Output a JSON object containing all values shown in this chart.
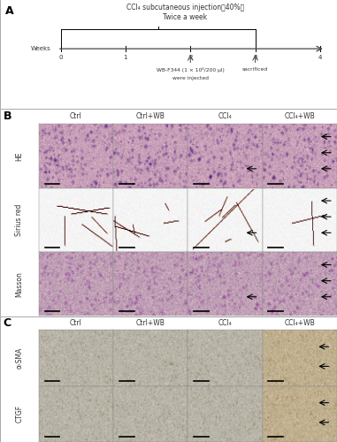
{
  "panel_A": {
    "title_line1": "CCl₄ subcutaneous injection（40%）",
    "title_line2": "Twice a week",
    "weeks_label": "Weeks",
    "tick_labels": [
      "0",
      "1",
      "2",
      "3",
      "4"
    ],
    "arrow1_label_line1": "WB-F344 (1 × 10⁶/200 μl)",
    "arrow1_label_line2": "were injected",
    "arrow2_label": "sacrificed"
  },
  "panel_B": {
    "row_labels": [
      "HE",
      "Sirius red",
      "Masson"
    ],
    "col_labels": [
      "Ctrl",
      "Ctrl+WB",
      "CCl₄",
      "CCl₄+WB"
    ],
    "he_base_colors": [
      "#c8a0b8",
      "#c8a0b8",
      "#c8a0b8",
      "#c8a0b8"
    ],
    "sirius_base_colors": [
      "#f0ece8",
      "#f0ece8",
      "#ede8e4",
      "#ece8e2"
    ],
    "masson_base_colors": [
      "#c0a0b5",
      "#c0a0b5",
      "#c0a0b5",
      "#c0a0b5"
    ]
  },
  "panel_C": {
    "row_labels": [
      "α-SMA",
      "CTGF"
    ],
    "col_labels": [
      "Ctrl",
      "Ctrl+WB",
      "CCl₄",
      "CCl₄+WB"
    ],
    "ihc_base_colors": [
      "#b8b4a8",
      "#b8b4a8",
      "#b8b4a8",
      "#c0b090"
    ]
  },
  "background_color": "#ffffff",
  "border_color": "#999999",
  "text_color": "#000000",
  "panel_label_color": "#000000"
}
